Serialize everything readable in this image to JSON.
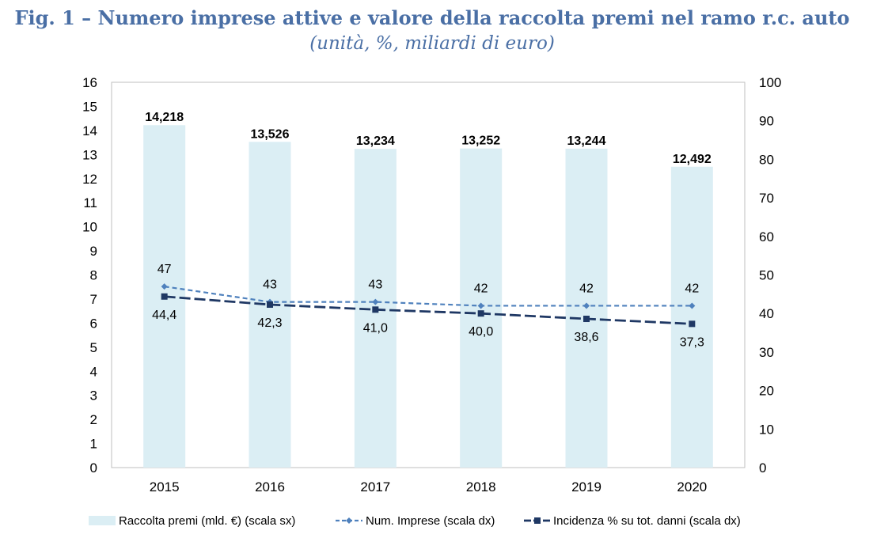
{
  "chart_data": {
    "type": "bar",
    "title": "Fig. 1 – Numero imprese attive e valore della raccolta premi nel ramo r.c. auto",
    "subtitle": "(unità, %, miliardi di euro)",
    "categories": [
      "2015",
      "2016",
      "2017",
      "2018",
      "2019",
      "2020"
    ],
    "y_left": {
      "min": 0,
      "max": 16,
      "step": 1,
      "ticks": [
        "0",
        "1",
        "2",
        "3",
        "4",
        "5",
        "6",
        "7",
        "8",
        "9",
        "10",
        "11",
        "12",
        "13",
        "14",
        "15",
        "16"
      ]
    },
    "y_right": {
      "min": 0,
      "max": 100,
      "step": 10,
      "ticks": [
        "0",
        "10",
        "20",
        "30",
        "40",
        "50",
        "60",
        "70",
        "80",
        "90",
        "100"
      ]
    },
    "series": [
      {
        "name": "Raccolta premi (mld.  €) (scala sx)",
        "type": "bar",
        "axis": "left",
        "color": "#dbeef4",
        "values": [
          14.218,
          13.526,
          13.234,
          13.252,
          13.244,
          12.492
        ],
        "labels": [
          "14,218",
          "13,526",
          "13,234",
          "13,252",
          "13,244",
          "12,492"
        ]
      },
      {
        "name": "Num. Imprese (scala dx)",
        "type": "line",
        "axis": "right",
        "color": "#4f81bd",
        "dash": "short",
        "marker": "diamond",
        "values": [
          47,
          43,
          43,
          42,
          42,
          42
        ],
        "labels": [
          "47",
          "43",
          "43",
          "42",
          "42",
          "42"
        ]
      },
      {
        "name": "Incidenza % su tot. danni (scala dx)",
        "type": "line",
        "axis": "right",
        "color": "#1f3864",
        "dash": "long",
        "marker": "square",
        "values": [
          44.4,
          42.3,
          41.0,
          40.0,
          38.6,
          37.3
        ],
        "labels": [
          "44,4",
          "42,3",
          "41,0",
          "40,0",
          "38,6",
          "37,3"
        ]
      }
    ],
    "grid": false,
    "legend": "bottom"
  }
}
